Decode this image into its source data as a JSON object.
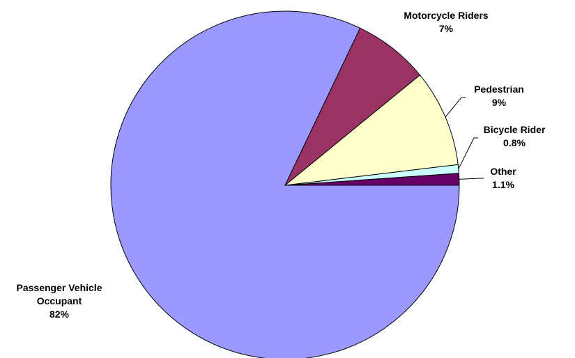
{
  "chart_data": {
    "type": "pie",
    "categories": [
      "Other",
      "Bicycle Rider",
      "Pedestrian",
      "Motorcycle Riders",
      "Passenger Vehicle Occupant"
    ],
    "values": [
      1.1,
      0.8,
      9,
      7,
      82
    ],
    "value_labels": [
      "1.1%",
      "0.8%",
      "9%",
      "7%",
      "82%"
    ],
    "colors": [
      "#660066",
      "#ccffff",
      "#ffffcc",
      "#993366",
      "#9999ff"
    ]
  }
}
